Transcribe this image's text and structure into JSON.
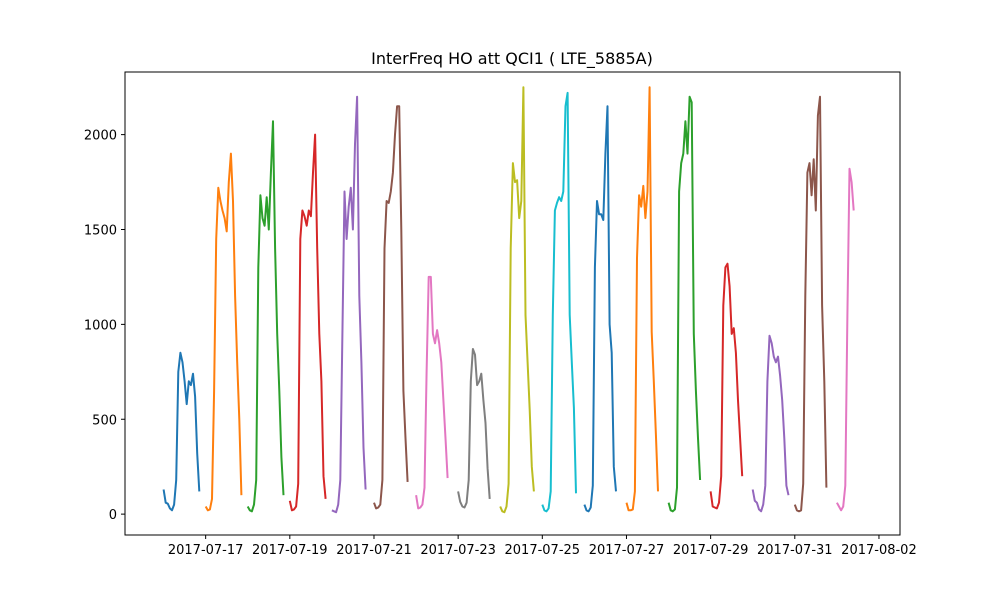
{
  "chart_data": {
    "type": "line",
    "title": "InterFreq HO att QCI1 ( LTE_5885A)",
    "xlabel": "",
    "ylabel": "",
    "xlim": [
      "2017-07-15T02:00",
      "2017-08-02T12:00"
    ],
    "ylim": [
      -110,
      2330
    ],
    "grid": false,
    "legend": "none",
    "x_ticks": [
      "2017-07-17",
      "2017-07-19",
      "2017-07-21",
      "2017-07-23",
      "2017-07-25",
      "2017-07-27",
      "2017-07-29",
      "2017-07-31",
      "2017-08-02"
    ],
    "x_tick_labels": [
      "2017-07-17",
      "2017-07-19",
      "2017-07-21",
      "2017-07-23",
      "2017-07-25",
      "2017-07-27",
      "2017-07-29",
      "2017-07-31",
      "2017-08-02"
    ],
    "y_ticks": [
      0,
      500,
      1000,
      1500,
      2000
    ],
    "colors": [
      "#1f77b4",
      "#ff7f0e",
      "#2ca02c",
      "#d62728",
      "#9467bd",
      "#8c564b",
      "#e377c2",
      "#7f7f7f",
      "#bcbd22",
      "#17becf"
    ],
    "series": [
      {
        "start": "2017-07-16T00:00",
        "values": [
          130,
          60,
          55,
          30,
          20,
          50,
          180,
          750,
          850,
          800,
          700,
          580,
          700,
          680,
          740,
          620,
          320,
          120
        ]
      },
      {
        "start": "2017-07-17T00:00",
        "values": [
          40,
          20,
          25,
          80,
          650,
          1450,
          1720,
          1650,
          1600,
          1560,
          1490,
          1750,
          1900,
          1650,
          1150,
          800,
          500,
          100
        ]
      },
      {
        "start": "2017-07-18T00:00",
        "values": [
          40,
          20,
          15,
          50,
          180,
          1300,
          1680,
          1560,
          1520,
          1670,
          1500,
          1800,
          2070,
          1400,
          950,
          650,
          300,
          100
        ]
      },
      {
        "start": "2017-07-19T00:00",
        "values": [
          70,
          20,
          25,
          40,
          160,
          1450,
          1600,
          1570,
          1520,
          1600,
          1570,
          1800,
          2000,
          1400,
          950,
          700,
          200,
          80
        ]
      },
      {
        "start": "2017-07-20T00:00",
        "values": [
          20,
          15,
          10,
          50,
          180,
          950,
          1700,
          1450,
          1620,
          1720,
          1500,
          1950,
          2200,
          1150,
          800,
          350,
          130
        ]
      },
      {
        "start": "2017-07-21T00:00",
        "values": [
          60,
          30,
          35,
          50,
          180,
          1400,
          1650,
          1640,
          1700,
          1800,
          2000,
          2150,
          2150,
          1500,
          650,
          400,
          170
        ]
      },
      {
        "start": "2017-07-22T00:00",
        "values": [
          100,
          30,
          35,
          50,
          140,
          750,
          1250,
          1250,
          950,
          900,
          970,
          900,
          800,
          600,
          400,
          190
        ]
      },
      {
        "start": "2017-07-23T00:00",
        "values": [
          120,
          65,
          40,
          35,
          60,
          180,
          700,
          870,
          840,
          680,
          700,
          740,
          600,
          480,
          240,
          80
        ]
      },
      {
        "start": "2017-07-24T00:00",
        "values": [
          40,
          15,
          10,
          40,
          160,
          1400,
          1850,
          1750,
          1760,
          1560,
          1650,
          2250,
          1050,
          800,
          550,
          250,
          120
        ]
      },
      {
        "start": "2017-07-25T00:00",
        "values": [
          50,
          20,
          15,
          30,
          120,
          1050,
          1600,
          1640,
          1670,
          1650,
          1700,
          2150,
          2220,
          1050,
          800,
          560,
          110
        ]
      },
      {
        "start": "2017-07-26T00:00",
        "values": [
          50,
          20,
          15,
          35,
          150,
          1300,
          1650,
          1580,
          1580,
          1550,
          1900,
          2150,
          1000,
          850,
          250,
          120
        ]
      },
      {
        "start": "2017-07-27T00:00",
        "values": [
          60,
          20,
          20,
          25,
          120,
          1350,
          1680,
          1620,
          1730,
          1560,
          1700,
          2250,
          960,
          700,
          420,
          120
        ]
      },
      {
        "start": "2017-07-28T00:00",
        "values": [
          60,
          20,
          15,
          25,
          140,
          1700,
          1850,
          1900,
          2070,
          1900,
          2200,
          2170,
          950,
          650,
          400,
          180
        ]
      },
      {
        "start": "2017-07-29T00:00",
        "values": [
          120,
          40,
          35,
          30,
          60,
          200,
          1100,
          1300,
          1320,
          1200,
          950,
          980,
          850,
          600,
          400,
          200
        ]
      },
      {
        "start": "2017-07-30T00:00",
        "values": [
          130,
          70,
          60,
          25,
          15,
          50,
          150,
          700,
          940,
          900,
          830,
          800,
          830,
          730,
          600,
          400,
          150,
          100
        ]
      },
      {
        "start": "2017-07-31T00:00",
        "values": [
          50,
          20,
          15,
          20,
          160,
          1150,
          1800,
          1850,
          1680,
          1870,
          1600,
          2100,
          2200,
          1100,
          700,
          140
        ]
      },
      {
        "start": "2017-08-01T00:00",
        "values": [
          60,
          40,
          20,
          40,
          150,
          1050,
          1820,
          1750,
          1600
        ]
      }
    ]
  }
}
